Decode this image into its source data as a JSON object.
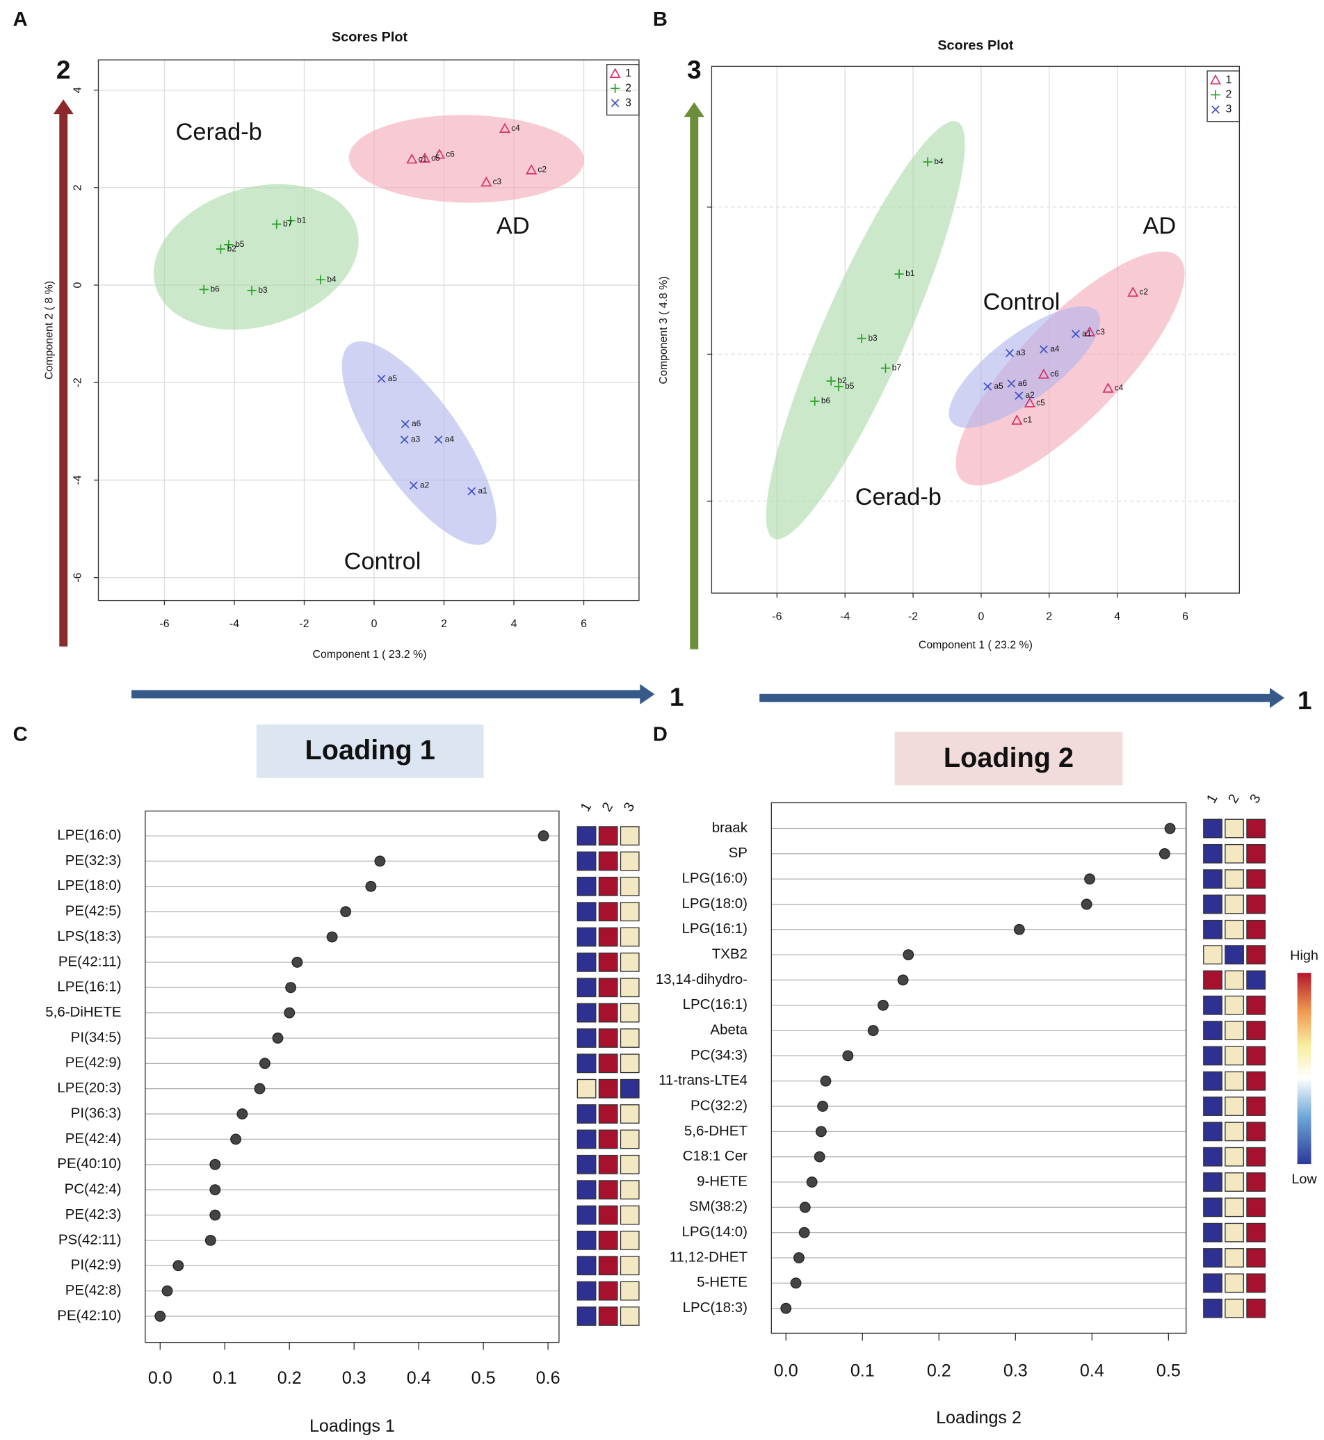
{
  "panel_labels": [
    "A",
    "B",
    "C",
    "D"
  ],
  "chart_data": [
    {
      "type": "scatter",
      "title": "Scores Plot",
      "x_label": "Component 1 ( 23.2 %)",
      "y_label": "Component 2 ( 8 %)",
      "xlim": [
        -7.89,
        7.58
      ],
      "ylim": [
        -6.47,
        4.62
      ],
      "xticks": [
        -6,
        -4,
        -2,
        0,
        2,
        4,
        6
      ],
      "yticks": [
        -6,
        -4,
        -2,
        0,
        2,
        4
      ],
      "grid": true,
      "legend": "top-right",
      "axis_arrows": {
        "y": "2",
        "x": "1"
      },
      "annotations": [
        "Cerad-b",
        "AD",
        "Control"
      ],
      "series": [
        {
          "name": "1",
          "color": "#d6336c",
          "ellipse_color": "#f4a6b8",
          "marker": "triangle",
          "labels": [
            "c4",
            "c2",
            "c3",
            "c6",
            "c5",
            "c1"
          ],
          "x": [
            3.74,
            4.5,
            3.21,
            1.87,
            1.45,
            1.08
          ],
          "y": [
            3.21,
            2.36,
            2.11,
            2.68,
            2.6,
            2.58
          ]
        },
        {
          "name": "2",
          "color": "#2ca02c",
          "ellipse_color": "#a9dba6",
          "marker": "plus",
          "labels": [
            "b1",
            "b7",
            "b5",
            "b2",
            "b4",
            "b6",
            "b3"
          ],
          "x": [
            -2.39,
            -2.79,
            -4.16,
            -4.39,
            -1.53,
            -4.87,
            -3.5
          ],
          "y": [
            1.32,
            1.25,
            0.83,
            0.74,
            0.11,
            -0.09,
            -0.11
          ]
        },
        {
          "name": "3",
          "color": "#3f51c8",
          "ellipse_color": "#b0b4ec",
          "marker": "cross",
          "labels": [
            "a5",
            "a6",
            "a3",
            "a4",
            "a2",
            "a1"
          ],
          "x": [
            0.21,
            0.89,
            0.87,
            1.84,
            1.13,
            2.79
          ],
          "y": [
            -1.92,
            -2.85,
            -3.17,
            -3.17,
            -4.11,
            -4.23
          ]
        }
      ]
    },
    {
      "type": "scatter",
      "title": "Scores Plot",
      "x_label": "Component 1 ( 23.2 %)",
      "y_label": "Component 3 ( 4.8 %)",
      "xlim": [
        -7.92,
        7.59
      ],
      "ylim": [
        -6.5,
        7.83
      ],
      "xticks": [
        -6,
        -4,
        -2,
        0,
        2,
        4,
        6
      ],
      "yticks": [
        -4,
        0,
        4
      ],
      "ytick_labels": false,
      "grid": true,
      "legend": "top-right",
      "axis_arrows": {
        "y": "3",
        "x": "1"
      },
      "annotations": [
        "AD",
        "Control",
        "Cerad-b"
      ],
      "series": [
        {
          "name": "1",
          "color": "#d6336c",
          "ellipse_color": "#f4a6b8",
          "marker": "triangle",
          "labels": [
            "c2",
            "c3",
            "c6",
            "c4",
            "c5",
            "c1"
          ],
          "x": [
            4.46,
            3.19,
            1.84,
            3.73,
            1.43,
            1.05
          ],
          "y": [
            1.68,
            0.6,
            -0.55,
            -0.93,
            -1.33,
            -1.8
          ]
        },
        {
          "name": "2",
          "color": "#2ca02c",
          "ellipse_color": "#a9dba6",
          "marker": "plus",
          "labels": [
            "b4",
            "b1",
            "b3",
            "b7",
            "b2",
            "b5",
            "b6"
          ],
          "x": [
            -1.57,
            -2.41,
            -3.51,
            -2.81,
            -4.41,
            -4.19,
            -4.89
          ],
          "y": [
            5.23,
            2.18,
            0.43,
            -0.38,
            -0.73,
            -0.88,
            -1.28
          ]
        },
        {
          "name": "3",
          "color": "#3f51c8",
          "ellipse_color": "#b0b4ec",
          "marker": "cross",
          "labels": [
            "a3",
            "a4",
            "a1",
            "a5",
            "a6",
            "a2"
          ],
          "x": [
            0.84,
            1.84,
            2.78,
            0.19,
            0.89,
            1.11
          ],
          "y": [
            0.03,
            0.13,
            0.55,
            -0.88,
            -0.8,
            -1.13
          ]
        }
      ]
    },
    {
      "type": "dot",
      "title": "Loading 1",
      "title_color": "#dce6f2",
      "x_label": "Loadings 1",
      "xlim": [
        -0.023,
        0.617
      ],
      "xticks": [
        {
          "value": 0,
          "label": "0.0"
        },
        0.1,
        0.2,
        0.3,
        0.4,
        0.5,
        0.6
      ],
      "heat_columns": [
        "1",
        "2",
        "3"
      ],
      "categories": [
        "LPE(16:0)",
        "PE(32:3)",
        "LPE(18:0)",
        "PE(42:5)",
        "LPS(18:3)",
        "PE(42:11)",
        "LPE(16:1)",
        "5,6-DiHETE",
        "PI(34:5)",
        "PE(42:9)",
        "LPE(20:3)",
        "PI(36:3)",
        "PE(42:4)",
        "PE(40:10)",
        "PC(42:4)",
        "PE(42:3)",
        "PS(42:11)",
        "PI(42:9)",
        "PE(42:8)",
        "PE(42:10)"
      ],
      "values": [
        0.593,
        0.34,
        0.326,
        0.287,
        0.266,
        0.212,
        0.202,
        0.2,
        0.182,
        0.162,
        0.154,
        0.127,
        0.117,
        0.085,
        0.085,
        0.085,
        0.078,
        0.028,
        0.011,
        0.0
      ],
      "heatmap": [
        [
          "#2e3192",
          "#a6112e",
          "#f3e8c1"
        ],
        [
          "#2e3192",
          "#a6112e",
          "#f3e8c1"
        ],
        [
          "#2e3192",
          "#a6112e",
          "#f3e8c1"
        ],
        [
          "#2e3192",
          "#a6112e",
          "#f3e8c1"
        ],
        [
          "#2e3192",
          "#a6112e",
          "#f3e8c1"
        ],
        [
          "#2e3192",
          "#a6112e",
          "#f3e8c1"
        ],
        [
          "#2e3192",
          "#a6112e",
          "#f3e8c1"
        ],
        [
          "#2e3192",
          "#a6112e",
          "#f3e8c1"
        ],
        [
          "#2e3192",
          "#a6112e",
          "#f3e8c1"
        ],
        [
          "#2e3192",
          "#a6112e",
          "#f3e8c1"
        ],
        [
          "#f3e8c1",
          "#a6112e",
          "#2e3192"
        ],
        [
          "#2e3192",
          "#a6112e",
          "#f3e8c1"
        ],
        [
          "#2e3192",
          "#a6112e",
          "#f3e8c1"
        ],
        [
          "#2e3192",
          "#a6112e",
          "#f3e8c1"
        ],
        [
          "#2e3192",
          "#a6112e",
          "#f3e8c1"
        ],
        [
          "#2e3192",
          "#a6112e",
          "#f3e8c1"
        ],
        [
          "#2e3192",
          "#a6112e",
          "#f3e8c1"
        ],
        [
          "#2e3192",
          "#a6112e",
          "#f3e8c1"
        ],
        [
          "#2e3192",
          "#a6112e",
          "#f3e8c1"
        ],
        [
          "#2e3192",
          "#a6112e",
          "#f3e8c1"
        ]
      ]
    },
    {
      "type": "dot",
      "title": "Loading 2",
      "title_color": "#f2dcdb",
      "x_label": "Loadings 2",
      "xlim": [
        -0.019,
        0.523
      ],
      "xticks": [
        {
          "value": 0,
          "label": "0.0"
        },
        0.1,
        0.2,
        0.3,
        0.4,
        0.5
      ],
      "heat_columns": [
        "1",
        "2",
        "3"
      ],
      "colorbar": {
        "high": "High",
        "low": "Low"
      },
      "categories": [
        "braak",
        "SP",
        "LPG(16:0)",
        "LPG(18:0)",
        "LPG(16:1)",
        "TXB2",
        "13,14-dihydro-",
        "LPC(16:1)",
        "Abeta",
        "PC(34:3)",
        "11-trans-LTE4",
        "PC(32:2)",
        "5,6-DHET",
        "C18:1 Cer",
        "9-HETE",
        "SM(38:2)",
        "LPG(14:0)",
        "11,12-DHET",
        "5-HETE",
        "LPC(18:3)"
      ],
      "values": [
        0.502,
        0.495,
        0.397,
        0.393,
        0.305,
        0.16,
        0.153,
        0.127,
        0.114,
        0.081,
        0.052,
        0.048,
        0.046,
        0.044,
        0.034,
        0.025,
        0.024,
        0.017,
        0.013,
        0.0
      ],
      "heatmap": [
        [
          "#2e3192",
          "#f3e8c1",
          "#a6112e"
        ],
        [
          "#2e3192",
          "#f3e8c1",
          "#a6112e"
        ],
        [
          "#2e3192",
          "#f3e8c1",
          "#a6112e"
        ],
        [
          "#2e3192",
          "#f3e8c1",
          "#a6112e"
        ],
        [
          "#2e3192",
          "#f3e8c1",
          "#a6112e"
        ],
        [
          "#f3e8c1",
          "#2e3192",
          "#a6112e"
        ],
        [
          "#a6112e",
          "#f3e8c1",
          "#2e3192"
        ],
        [
          "#2e3192",
          "#f3e8c1",
          "#a6112e"
        ],
        [
          "#2e3192",
          "#f3e8c1",
          "#a6112e"
        ],
        [
          "#2e3192",
          "#f3e8c1",
          "#a6112e"
        ],
        [
          "#2e3192",
          "#f3e8c1",
          "#a6112e"
        ],
        [
          "#2e3192",
          "#f3e8c1",
          "#a6112e"
        ],
        [
          "#2e3192",
          "#f3e8c1",
          "#a6112e"
        ],
        [
          "#2e3192",
          "#f3e8c1",
          "#a6112e"
        ],
        [
          "#2e3192",
          "#f3e8c1",
          "#a6112e"
        ],
        [
          "#2e3192",
          "#f3e8c1",
          "#a6112e"
        ],
        [
          "#2e3192",
          "#f3e8c1",
          "#a6112e"
        ],
        [
          "#2e3192",
          "#f3e8c1",
          "#a6112e"
        ],
        [
          "#2e3192",
          "#f3e8c1",
          "#a6112e"
        ],
        [
          "#2e3192",
          "#f3e8c1",
          "#a6112e"
        ]
      ]
    }
  ]
}
